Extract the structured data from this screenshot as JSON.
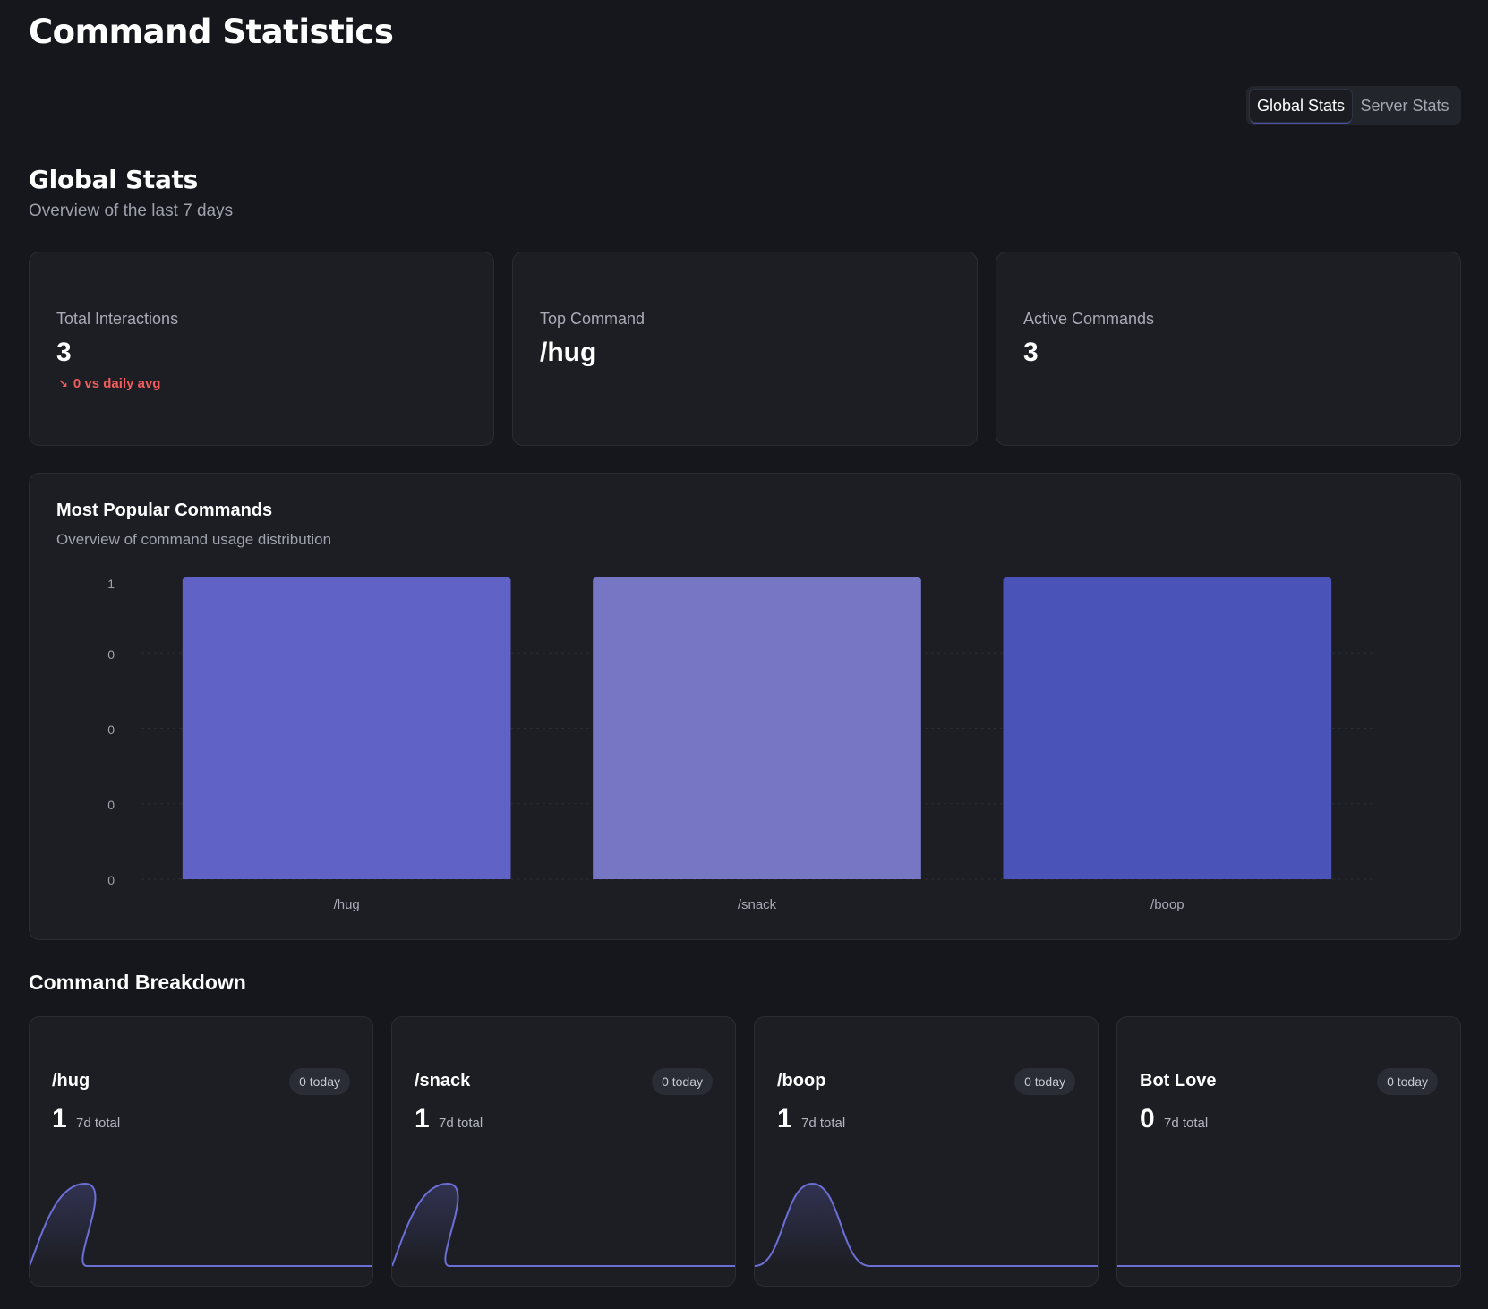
{
  "header": {
    "title": "Command Statistics"
  },
  "tabs": [
    {
      "label": "Global Stats",
      "active": true
    },
    {
      "label": "Server Stats",
      "active": false
    }
  ],
  "overview": {
    "title": "Global Stats",
    "subtitle": "Overview of the last 7 days"
  },
  "stats": [
    {
      "label": "Total Interactions",
      "value": "3",
      "delta": "0 vs daily avg",
      "delta_icon": "arrow-down-right-icon"
    },
    {
      "label": "Top Command",
      "value": "/hug"
    },
    {
      "label": "Active Commands",
      "value": "3"
    }
  ],
  "chart": {
    "title": "Most Popular Commands",
    "subtitle": "Overview of command usage distribution"
  },
  "chart_data": {
    "type": "bar",
    "categories": [
      "/hug",
      "/snack",
      "/boop"
    ],
    "values": [
      1,
      1,
      1
    ],
    "colors": [
      "#6062c6",
      "#7676c4",
      "#4a54b8"
    ],
    "y_tick_labels": [
      "0",
      "0",
      "0",
      "0",
      "1"
    ],
    "ylim": [
      0,
      1
    ],
    "grid": true,
    "xlabel": "",
    "ylabel": ""
  },
  "breakdown": {
    "title": "Command Breakdown",
    "total_label": "7d total",
    "items": [
      {
        "name": "/hug",
        "today": "0 today",
        "total": "1",
        "trend": [
          1,
          0,
          0,
          0,
          0,
          0,
          0
        ]
      },
      {
        "name": "/snack",
        "today": "0 today",
        "total": "1",
        "trend": [
          1,
          0,
          0,
          0,
          0,
          0,
          0
        ]
      },
      {
        "name": "/boop",
        "today": "0 today",
        "total": "1",
        "trend": [
          0,
          1,
          0,
          0,
          0,
          0,
          0
        ]
      },
      {
        "name": "Bot Love",
        "today": "0 today",
        "total": "0",
        "trend": [
          0,
          0,
          0,
          0,
          0,
          0,
          0
        ]
      }
    ]
  },
  "colors": {
    "background": "#16171c",
    "card": "#1d1e24",
    "accent": "#6b6fd6",
    "negative": "#f25c5c"
  }
}
